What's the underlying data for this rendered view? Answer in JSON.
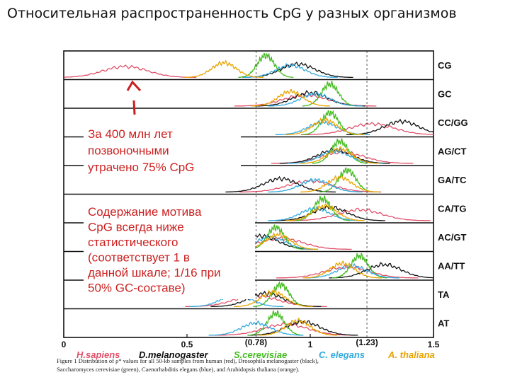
{
  "slide_title": "Относительная распространенность CpG у разных организмов",
  "chart_data": {
    "type": "line",
    "title": "",
    "xlabel": "",
    "ylabel": "",
    "xlim": [
      0,
      1.5
    ],
    "x_ticks": [
      "0",
      "0.5",
      "1",
      "1.5"
    ],
    "x_markers": [
      {
        "label": "(0.78)",
        "x": 0.78
      },
      {
        "label": "(1.23)",
        "x": 1.23
      }
    ],
    "grid": false,
    "series": [
      {
        "name": "H.sapiens",
        "color": "#e0506a"
      },
      {
        "name": "D.melanogaster",
        "color": "#111111"
      },
      {
        "name": "S.cerevisiae",
        "color": "#44bb22"
      },
      {
        "name": "C. elegans",
        "color": "#33aadd"
      },
      {
        "name": "A. thaliana",
        "color": "#e8a400"
      }
    ],
    "panels": [
      {
        "label": "CG",
        "peaks": {
          "H.sapiens": 0.25,
          "D.melanogaster": 0.95,
          "S.cerevisiae": 0.82,
          "C. elegans": 0.92,
          "A. thaliana": 0.65
        }
      },
      {
        "label": "GC",
        "peaks": {
          "H.sapiens": 0.98,
          "D.melanogaster": 1.0,
          "S.cerevisiae": 1.08,
          "C. elegans": 1.02,
          "A. thaliana": 0.92
        }
      },
      {
        "label": "CC/GG",
        "peaks": {
          "H.sapiens": 1.25,
          "D.melanogaster": 1.37,
          "S.cerevisiae": 1.08,
          "C. elegans": 1.05,
          "A. thaliana": 1.06
        }
      },
      {
        "label": "AG/CT",
        "peaks": {
          "H.sapiens": 1.13,
          "D.melanogaster": 1.1,
          "S.cerevisiae": 1.12,
          "C. elegans": 1.1,
          "A. thaliana": 1.12
        }
      },
      {
        "label": "GA/TC",
        "peaks": {
          "H.sapiens": 1.0,
          "D.melanogaster": 0.88,
          "S.cerevisiae": 1.15,
          "C. elegans": 1.02,
          "A. thaliana": 1.12
        }
      },
      {
        "label": "CA/TG",
        "peaks": {
          "H.sapiens": 1.2,
          "D.melanogaster": 1.08,
          "S.cerevisiae": 1.05,
          "C. elegans": 1.02,
          "A. thaliana": 1.06
        }
      },
      {
        "label": "AC/GT",
        "peaks": {
          "H.sapiens": 0.88,
          "D.melanogaster": 0.8,
          "S.cerevisiae": 0.86,
          "C. elegans": 0.84,
          "A. thaliana": 0.87
        }
      },
      {
        "label": "AA/TT",
        "peaks": {
          "H.sapiens": 1.15,
          "D.melanogaster": 1.3,
          "S.cerevisiae": 1.2,
          "C. elegans": 1.17,
          "A. thaliana": 1.13
        }
      },
      {
        "label": "TA",
        "peaks": {
          "H.sapiens": 0.78,
          "D.melanogaster": 0.82,
          "S.cerevisiae": 0.88,
          "C. elegans": 0.7,
          "A. thaliana": 0.85
        }
      },
      {
        "label": "AT",
        "peaks": {
          "H.sapiens": 0.9,
          "D.melanogaster": 0.97,
          "S.cerevisiae": 0.86,
          "C. elegans": 0.78,
          "A. thaliana": 0.95
        }
      }
    ],
    "annotations": [
      {
        "lines": [
          "За 400 млн лет",
          "позвоночными",
          "утрачено 75% CpG"
        ],
        "color": "#cc1f1f"
      },
      {
        "lines": [
          "Содержание мотива",
          "CpG всегда ниже",
          "статистического",
          "(соответствует 1 в",
          "данной шкале; 1/16 при",
          "50% GC-составе)"
        ],
        "color": "#cc1f1f"
      }
    ],
    "caption": [
      "Figure 1  Distribution of ρ* values for all 50-kb samples from human (red), Drosophila melanogaster (black),",
      "Saccharomyces cerevisiae (green), Caenorhabditis elegans (blue), and Arabidopsis thaliana (orange)."
    ]
  }
}
